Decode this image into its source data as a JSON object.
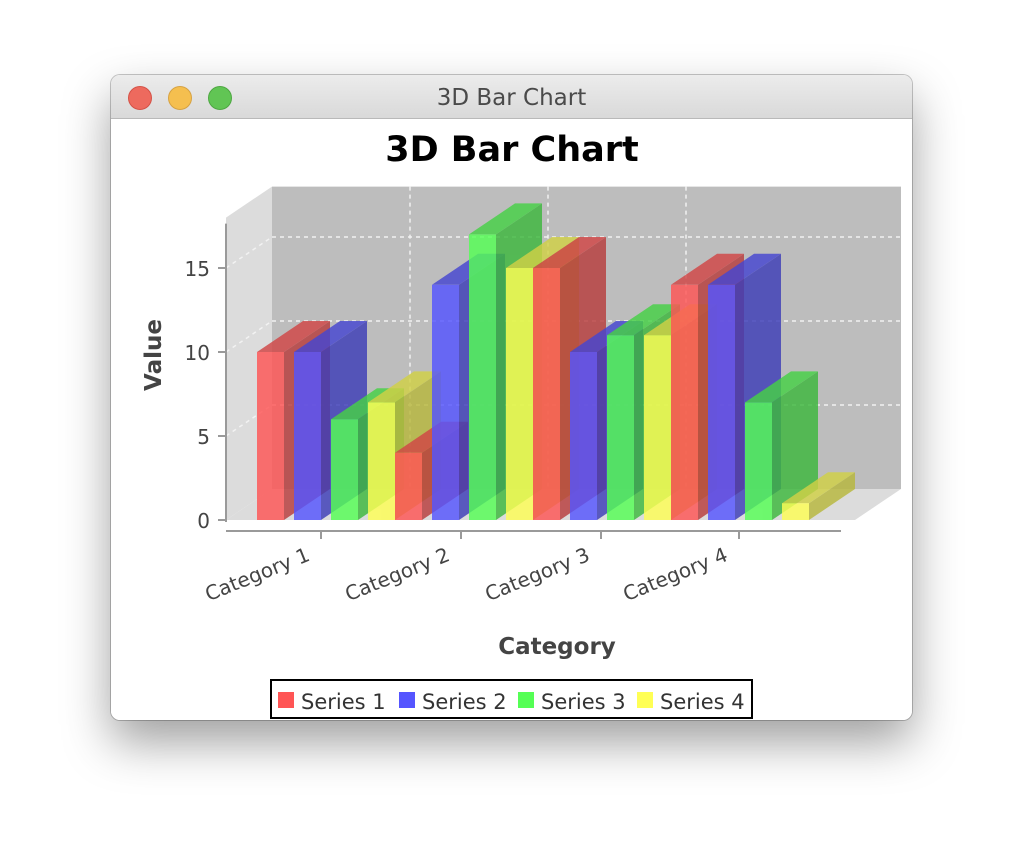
{
  "window": {
    "title": "3D Bar Chart"
  },
  "chart_data": {
    "type": "bar",
    "title": "3D Bar Chart",
    "xlabel": "Category",
    "ylabel": "Value",
    "categories": [
      "Category 1",
      "Category 2",
      "Category 3",
      "Category 4"
    ],
    "series": [
      {
        "name": "Series 1",
        "color": "#ff5555",
        "values": [
          10,
          4,
          15,
          14
        ]
      },
      {
        "name": "Series 2",
        "color": "#5555ff",
        "values": [
          10,
          14,
          10,
          14
        ]
      },
      {
        "name": "Series 3",
        "color": "#55ff55",
        "values": [
          6,
          17,
          11,
          7
        ]
      },
      {
        "name": "Series 4",
        "color": "#ffff55",
        "values": [
          7,
          15,
          11,
          1
        ]
      }
    ],
    "ylim": [
      0,
      18
    ],
    "yticks": [
      "0",
      "5",
      "10",
      "15"
    ],
    "ytick_values": [
      0,
      5,
      10,
      15
    ],
    "grid": true,
    "legend": "bottom",
    "style": "3d"
  }
}
